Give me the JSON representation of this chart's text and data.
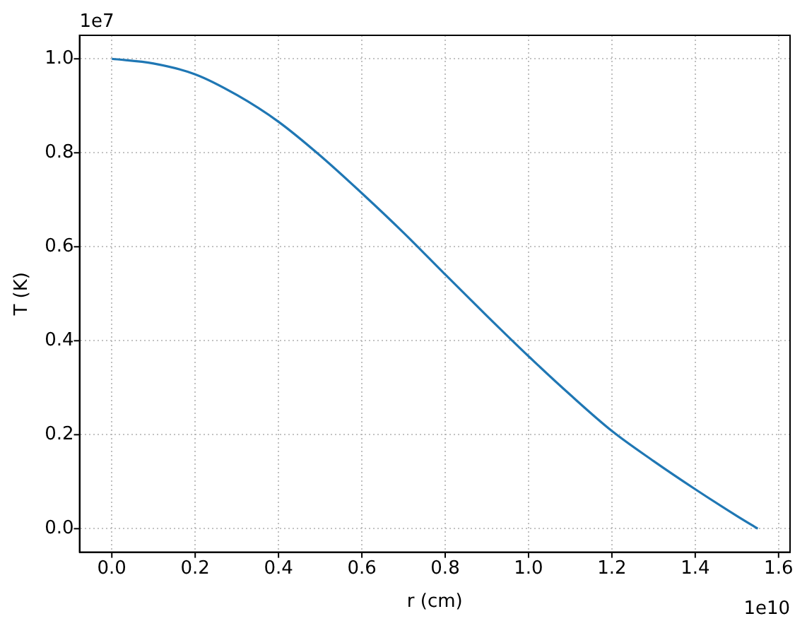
{
  "chart_data": {
    "type": "line",
    "xlabel": "r (cm)",
    "ylabel": "T (K)",
    "annotations": [
      "1e7",
      "1e10"
    ],
    "x": [
      0,
      0.1,
      0.2,
      0.3,
      0.4,
      0.5,
      0.6,
      0.7,
      0.8,
      0.9,
      1.0,
      1.1,
      1.2,
      1.3,
      1.4,
      1.5,
      1.55
    ],
    "series": [
      {
        "color": "#1f77b4",
        "values": [
          1.0,
          0.99,
          0.967,
          0.923,
          0.866,
          0.794,
          0.714,
          0.63,
          0.541,
          0.453,
          0.367,
          0.285,
          0.208,
          0.144,
          0.084,
          0.027,
          0
        ]
      }
    ],
    "xlim": [
      -0.0775,
      1.6275
    ],
    "xticks": [
      {
        "value": 0,
        "label": "0.0"
      },
      0.2,
      0.4,
      0.6,
      0.8,
      {
        "value": 1,
        "label": "1.0"
      },
      1.2,
      1.4,
      1.6
    ],
    "ylim": [
      -0.05,
      1.05
    ],
    "yticks": [
      {
        "value": 0,
        "label": "0.0"
      },
      0.2,
      0.4,
      0.6,
      0.8,
      {
        "value": 1,
        "label": "1.0"
      }
    ],
    "grid": true,
    "legend": false,
    "marker": "none",
    "line_style": "solid"
  }
}
